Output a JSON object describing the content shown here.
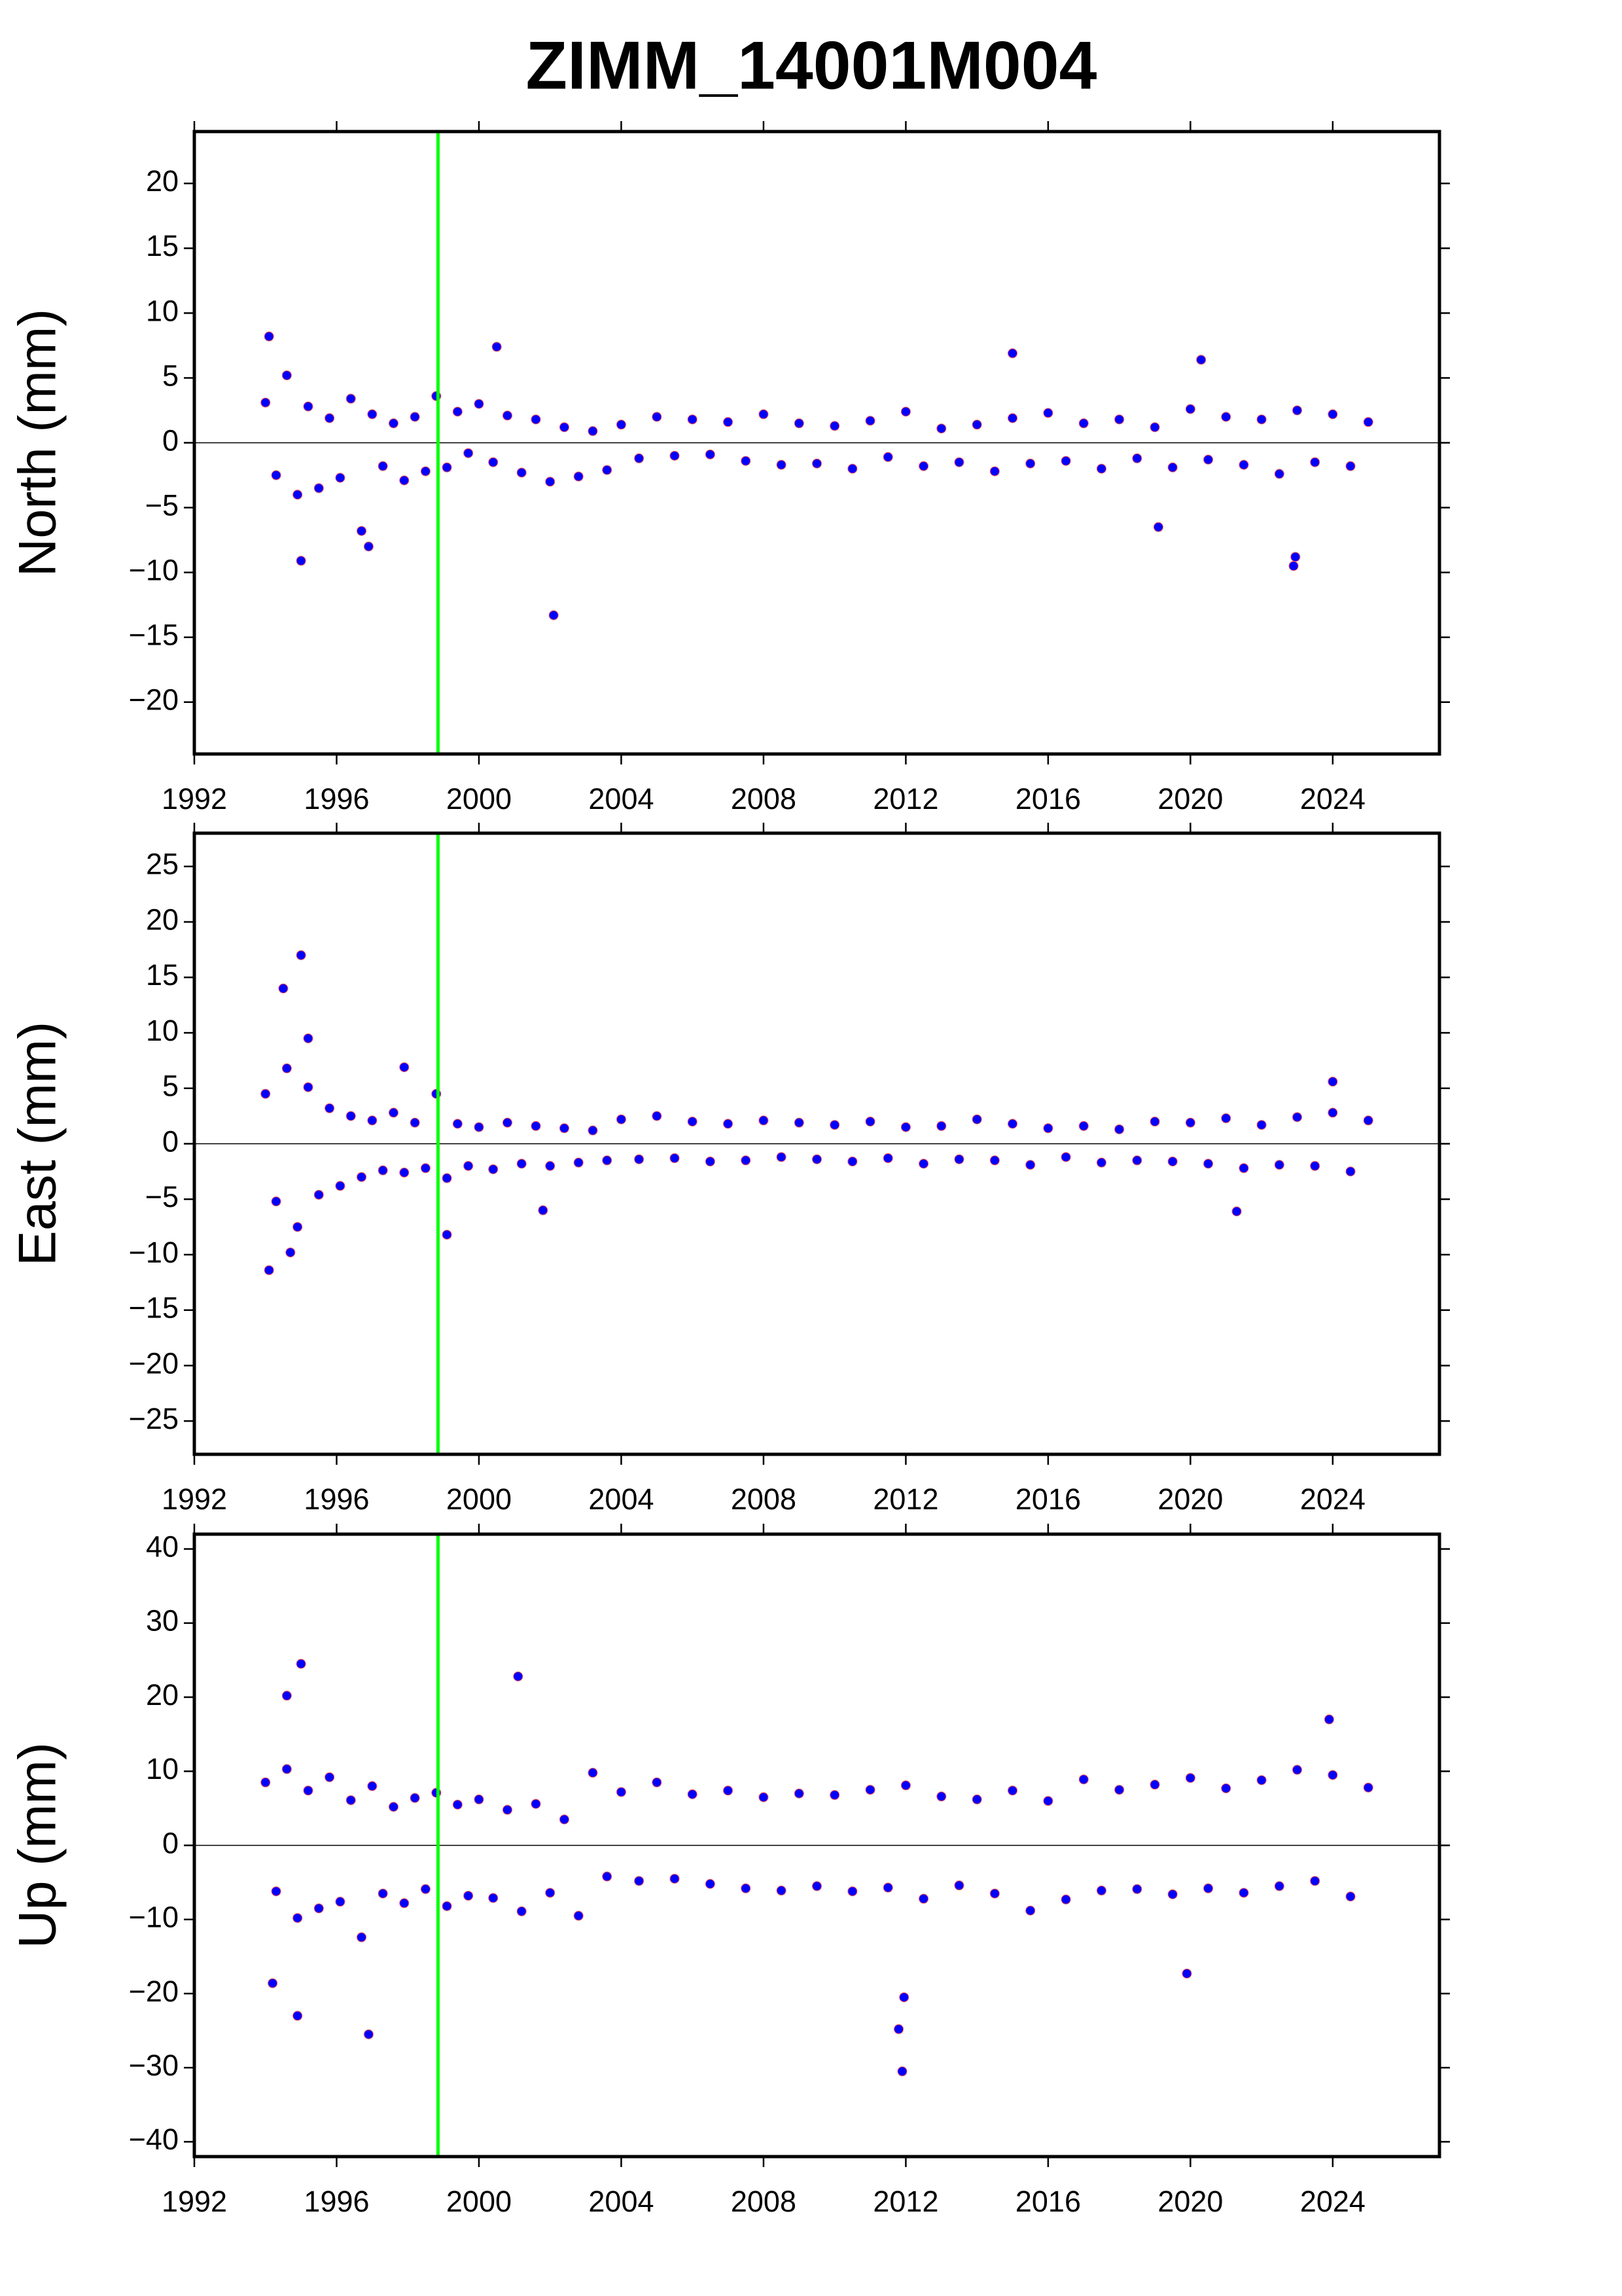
{
  "title": "ZIMM_14001M004",
  "chart_data": [
    {
      "type": "scatter",
      "ylabel": "North (mm)",
      "color": "#0000ff",
      "xlim": [
        1992,
        2027
      ],
      "ylim": [
        -24,
        24
      ],
      "xticks": [
        1992,
        1996,
        2000,
        2004,
        2008,
        2012,
        2016,
        2020,
        2024
      ],
      "yticks": [
        {
          "value": -20,
          "label": "−20"
        },
        {
          "value": -15,
          "label": "−15"
        },
        {
          "value": -10,
          "label": "−10"
        },
        {
          "value": -5,
          "label": "−5"
        },
        0,
        5,
        10,
        15,
        20
      ],
      "vline": 1998.85,
      "vline_color": "#00ff00",
      "hline": 0,
      "x": [
        1994.0,
        1994.3,
        1994.6,
        1994.9,
        1995.2,
        1995.5,
        1995.8,
        1996.1,
        1996.4,
        1996.7,
        1997.0,
        1997.3,
        1997.6,
        1997.9,
        1998.2,
        1998.5,
        1998.8,
        1999.1,
        1999.4,
        1999.7,
        2000.0,
        2000.4,
        2000.8,
        2001.2,
        2001.6,
        2002.0,
        2002.4,
        2002.8,
        2003.2,
        2003.6,
        2004.0,
        2004.5,
        2005.0,
        2005.5,
        2006.0,
        2006.5,
        2007.0,
        2007.5,
        2008.0,
        2008.5,
        2009.0,
        2009.5,
        2010.0,
        2010.5,
        2011.0,
        2011.5,
        2012.0,
        2012.5,
        2013.0,
        2013.5,
        2014.0,
        2014.5,
        2015.0,
        2015.5,
        2016.0,
        2016.5,
        2017.0,
        2017.5,
        2018.0,
        2018.5,
        2019.0,
        2019.5,
        2020.0,
        2020.5,
        2021.0,
        2021.5,
        2022.0,
        2022.5,
        2023.0,
        2023.5,
        2024.0,
        2024.5,
        2025.0,
        2002.1,
        1994.1,
        1995.0,
        2022.9,
        2022.95,
        2000.5,
        2015.0,
        2020.3,
        1996.9,
        2019.1
      ],
      "values": [
        3.1,
        -2.5,
        5.2,
        -4.0,
        2.8,
        -3.5,
        1.9,
        -2.7,
        3.4,
        -6.8,
        2.2,
        -1.8,
        1.5,
        -2.9,
        2.0,
        -2.2,
        3.6,
        -1.9,
        2.4,
        -0.8,
        3.0,
        -1.5,
        2.1,
        -2.3,
        1.8,
        -3.0,
        1.2,
        -2.6,
        0.9,
        -2.1,
        1.4,
        -1.2,
        2.0,
        -1.0,
        1.8,
        -0.9,
        1.6,
        -1.4,
        2.2,
        -1.7,
        1.5,
        -1.6,
        1.3,
        -2.0,
        1.7,
        -1.1,
        2.4,
        -1.8,
        1.1,
        -1.5,
        1.4,
        -2.2,
        1.9,
        -1.6,
        2.3,
        -1.4,
        1.5,
        -2.0,
        1.8,
        -1.2,
        1.2,
        -1.9,
        2.6,
        -1.3,
        2.0,
        -1.7,
        1.8,
        -2.4,
        2.5,
        -1.5,
        2.2,
        -1.8,
        1.6,
        -13.3,
        8.2,
        -9.1,
        -9.5,
        -8.8,
        7.4,
        6.9,
        6.4,
        -8.0,
        -6.5
      ]
    },
    {
      "type": "scatter",
      "ylabel": "East (mm)",
      "color": "#0000ff",
      "xlim": [
        1992,
        2027
      ],
      "ylim": [
        -28,
        28
      ],
      "xticks": [
        1992,
        1996,
        2000,
        2004,
        2008,
        2012,
        2016,
        2020,
        2024
      ],
      "yticks": [
        {
          "value": -25,
          "label": "−25"
        },
        {
          "value": -20,
          "label": "−20"
        },
        {
          "value": -15,
          "label": "−15"
        },
        {
          "value": -10,
          "label": "−10"
        },
        {
          "value": -5,
          "label": "−5"
        },
        0,
        5,
        10,
        15,
        20,
        25
      ],
      "vline": 1998.85,
      "vline_color": "#00ff00",
      "hline": 0,
      "x": [
        1994.0,
        1994.3,
        1994.6,
        1994.9,
        1995.2,
        1995.5,
        1995.8,
        1996.1,
        1996.4,
        1996.7,
        1997.0,
        1997.3,
        1997.6,
        1997.9,
        1998.2,
        1998.5,
        1998.8,
        1999.1,
        1999.4,
        1999.7,
        2000.0,
        2000.4,
        2000.8,
        2001.2,
        2001.6,
        2002.0,
        2002.4,
        2002.8,
        2003.2,
        2003.6,
        2004.0,
        2004.5,
        2005.0,
        2005.5,
        2006.0,
        2006.5,
        2007.0,
        2007.5,
        2008.0,
        2008.5,
        2009.0,
        2009.5,
        2010.0,
        2010.5,
        2011.0,
        2011.5,
        2012.0,
        2012.5,
        2013.0,
        2013.5,
        2014.0,
        2014.5,
        2015.0,
        2015.5,
        2016.0,
        2016.5,
        2017.0,
        2017.5,
        2018.0,
        2018.5,
        2019.0,
        2019.5,
        2020.0,
        2020.5,
        2021.0,
        2021.5,
        2022.0,
        2022.5,
        2023.0,
        2023.5,
        2024.0,
        2024.5,
        2025.0,
        1995.0,
        1994.5,
        1994.1,
        1994.7,
        1995.2,
        1999.1,
        2024.0,
        2021.3,
        2001.8,
        1997.9
      ],
      "values": [
        4.5,
        -5.2,
        6.8,
        -7.5,
        5.1,
        -4.6,
        3.2,
        -3.8,
        2.5,
        -3.0,
        2.1,
        -2.4,
        2.8,
        -2.6,
        1.9,
        -2.2,
        4.5,
        -3.1,
        1.8,
        -2.0,
        1.5,
        -2.3,
        1.9,
        -1.8,
        1.6,
        -2.0,
        1.4,
        -1.7,
        1.2,
        -1.5,
        2.2,
        -1.4,
        2.5,
        -1.3,
        2.0,
        -1.6,
        1.8,
        -1.5,
        2.1,
        -1.2,
        1.9,
        -1.4,
        1.7,
        -1.6,
        2.0,
        -1.3,
        1.5,
        -1.8,
        1.6,
        -1.4,
        2.2,
        -1.5,
        1.8,
        -1.9,
        1.4,
        -1.2,
        1.6,
        -1.7,
        1.3,
        -1.5,
        2.0,
        -1.6,
        1.9,
        -1.8,
        2.3,
        -2.2,
        1.7,
        -1.9,
        2.4,
        -2.0,
        2.8,
        -2.5,
        2.1,
        17.0,
        14.0,
        -11.4,
        -9.8,
        9.5,
        -8.2,
        5.6,
        -6.1,
        -6.0,
        6.9
      ]
    },
    {
      "type": "scatter",
      "ylabel": "Up (mm)",
      "color": "#0000ff",
      "xlim": [
        1992,
        2027
      ],
      "ylim": [
        -42,
        42
      ],
      "xticks": [
        1992,
        1996,
        2000,
        2004,
        2008,
        2012,
        2016,
        2020,
        2024
      ],
      "yticks": [
        {
          "value": -40,
          "label": "−40"
        },
        {
          "value": -30,
          "label": "−30"
        },
        {
          "value": -20,
          "label": "−20"
        },
        {
          "value": -10,
          "label": "−10"
        },
        0,
        10,
        20,
        30,
        40
      ],
      "vline": 1998.85,
      "vline_color": "#00ff00",
      "hline": 0,
      "x": [
        1994.0,
        1994.3,
        1994.6,
        1994.9,
        1995.2,
        1995.5,
        1995.8,
        1996.1,
        1996.4,
        1996.7,
        1997.0,
        1997.3,
        1997.6,
        1997.9,
        1998.2,
        1998.5,
        1998.8,
        1999.1,
        1999.4,
        1999.7,
        2000.0,
        2000.4,
        2000.8,
        2001.2,
        2001.6,
        2002.0,
        2002.4,
        2002.8,
        2003.2,
        2003.6,
        2004.0,
        2004.5,
        2005.0,
        2005.5,
        2006.0,
        2006.5,
        2007.0,
        2007.5,
        2008.0,
        2008.5,
        2009.0,
        2009.5,
        2010.0,
        2010.5,
        2011.0,
        2011.5,
        2012.0,
        2012.5,
        2013.0,
        2013.5,
        2014.0,
        2014.5,
        2015.0,
        2015.5,
        2016.0,
        2016.5,
        2017.0,
        2017.5,
        2018.0,
        2018.5,
        2019.0,
        2019.5,
        2020.0,
        2020.5,
        2021.0,
        2021.5,
        2022.0,
        2022.5,
        2023.0,
        2023.5,
        2024.0,
        2024.5,
        2025.0,
        1995.0,
        2001.1,
        1994.9,
        1996.9,
        2011.9,
        2011.8,
        2011.95,
        1994.2,
        2019.9,
        2023.9,
        1994.6
      ],
      "values": [
        8.5,
        -6.2,
        10.3,
        -9.8,
        7.4,
        -8.5,
        9.2,
        -7.6,
        6.1,
        -12.4,
        8.0,
        -6.5,
        5.2,
        -7.8,
        6.4,
        -5.9,
        7.1,
        -8.2,
        5.5,
        -6.8,
        6.2,
        -7.1,
        4.8,
        -8.9,
        5.6,
        -6.4,
        3.5,
        -9.5,
        9.8,
        -4.2,
        7.2,
        -4.8,
        8.5,
        -4.5,
        6.9,
        -5.2,
        7.4,
        -5.8,
        6.5,
        -6.1,
        7.0,
        -5.5,
        6.8,
        -6.2,
        7.5,
        -5.7,
        8.1,
        -7.2,
        6.6,
        -5.4,
        6.2,
        -6.5,
        7.4,
        -8.8,
        6.0,
        -7.3,
        8.9,
        -6.1,
        7.5,
        -5.9,
        8.2,
        -6.6,
        9.1,
        -5.8,
        7.7,
        -6.4,
        8.8,
        -5.5,
        10.2,
        -4.8,
        9.5,
        -6.9,
        7.8,
        24.5,
        22.8,
        -23.0,
        -25.5,
        -30.5,
        -24.8,
        -20.5,
        -18.6,
        -17.3,
        17.0,
        20.2
      ]
    }
  ]
}
